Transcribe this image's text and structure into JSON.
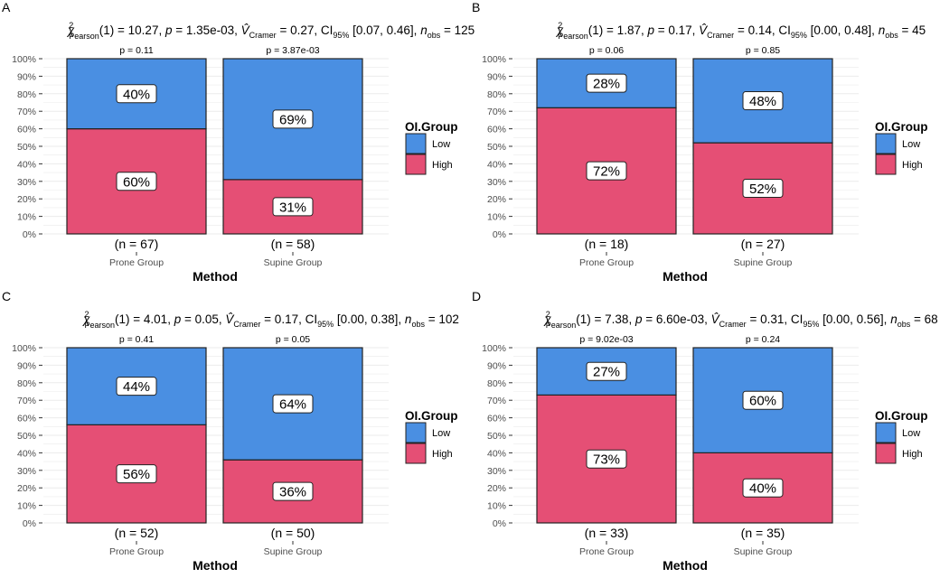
{
  "colors": {
    "Low": "#4a8fe2",
    "High": "#e54f75",
    "grid": "#ebebeb"
  },
  "chart_data": [
    {
      "type": "bar",
      "panel": "A",
      "stat_parts": {
        "chi": "10.27",
        "p": "1.35e-03",
        "v": "0.27",
        "ci": "[0.07, 0.46]",
        "n": "125"
      },
      "categories": [
        "Prone Group",
        "Supine Group"
      ],
      "n_labels": [
        "(n = 67)",
        "(n = 58)"
      ],
      "p_labels": [
        "p = 0.11",
        "p = 3.87e-03"
      ],
      "series": [
        {
          "name": "Low",
          "values": [
            40,
            69
          ]
        },
        {
          "name": "High",
          "values": [
            60,
            31
          ]
        }
      ],
      "xlabel": "Method",
      "legend_title": "OI.Group",
      "ylim": [
        0,
        100
      ]
    },
    {
      "type": "bar",
      "panel": "B",
      "stat_parts": {
        "chi": "1.87",
        "p": "0.17",
        "v": "0.14",
        "ci": "[0.00, 0.48]",
        "n": "45"
      },
      "categories": [
        "Prone Group",
        "Supine Group"
      ],
      "n_labels": [
        "(n = 18)",
        "(n = 27)"
      ],
      "p_labels": [
        "p = 0.06",
        "p = 0.85"
      ],
      "series": [
        {
          "name": "Low",
          "values": [
            28,
            48
          ]
        },
        {
          "name": "High",
          "values": [
            72,
            52
          ]
        }
      ],
      "xlabel": "Method",
      "legend_title": "OI.Group",
      "ylim": [
        0,
        100
      ]
    },
    {
      "type": "bar",
      "panel": "C",
      "stat_parts": {
        "chi": "4.01",
        "p": "0.05",
        "v": "0.17",
        "ci": "[0.00, 0.38]",
        "n": "102"
      },
      "categories": [
        "Prone Group",
        "Supine Group"
      ],
      "n_labels": [
        "(n = 52)",
        "(n = 50)"
      ],
      "p_labels": [
        "p = 0.41",
        "p = 0.05"
      ],
      "series": [
        {
          "name": "Low",
          "values": [
            44,
            64
          ]
        },
        {
          "name": "High",
          "values": [
            56,
            36
          ]
        }
      ],
      "xlabel": "Method",
      "legend_title": "OI.Group",
      "ylim": [
        0,
        100
      ]
    },
    {
      "type": "bar",
      "panel": "D",
      "stat_parts": {
        "chi": "7.38",
        "p": "6.60e-03",
        "v": "0.31",
        "ci": "[0.00, 0.56]",
        "n": "68"
      },
      "categories": [
        "Prone Group",
        "Supine Group"
      ],
      "n_labels": [
        "(n = 33)",
        "(n = 35)"
      ],
      "p_labels": [
        "p = 9.02e-03",
        "p = 0.24"
      ],
      "series": [
        {
          "name": "Low",
          "values": [
            27,
            60
          ]
        },
        {
          "name": "High",
          "values": [
            73,
            40
          ]
        }
      ],
      "xlabel": "Method",
      "legend_title": "OI.Group",
      "ylim": [
        0,
        100
      ]
    }
  ],
  "yticks": [
    "0%",
    "10%",
    "20%",
    "30%",
    "40%",
    "50%",
    "60%",
    "70%",
    "80%",
    "90%",
    "100%"
  ]
}
